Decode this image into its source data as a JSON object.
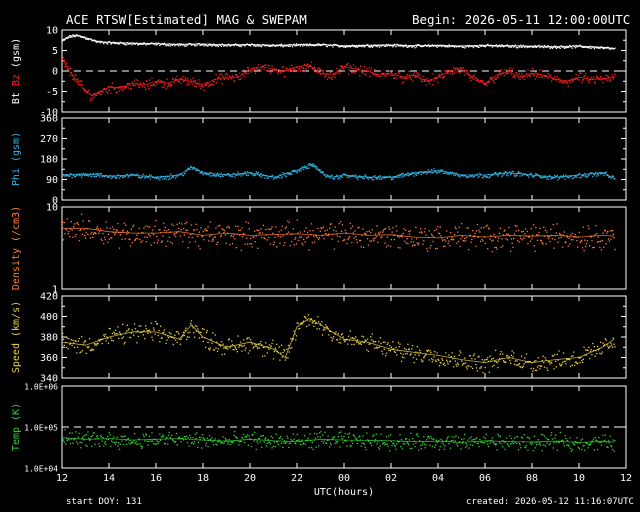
{
  "header": {
    "title": "ACE RTSW[Estimated] MAG & SWEPAM",
    "begin": "Begin: 2026-05-11 12:00:00UTC"
  },
  "footer": {
    "start_doy": "start DOY: 131",
    "created": "created: 2026-05-12 11:16:07UTC"
  },
  "colors": {
    "background": "#000000",
    "axes": "#ffffff",
    "bt": "#ffffff",
    "bz": "#ff2020",
    "phi": "#33b5e5",
    "density": "#ff7f3a",
    "speed": "#e8d048",
    "temp": "#33d033"
  },
  "chart_data": [
    {
      "type": "scatter",
      "panel": "mag",
      "ylabel_parts": [
        "Bt",
        "Bz",
        "(gsm)"
      ],
      "ylim": [
        -10,
        10
      ],
      "yticks": [
        -10,
        -5,
        0,
        5,
        10
      ],
      "ytick_labels": [
        "-10",
        "-5",
        "0",
        "5",
        "10"
      ],
      "xlim": [
        12,
        36
      ],
      "reference_line": 0,
      "series": [
        {
          "name": "Bt",
          "color_key": "bt",
          "x": [
            12.0,
            12.3,
            12.6,
            13.0,
            13.5,
            14,
            15,
            16,
            17,
            18,
            19,
            20,
            21,
            22,
            23,
            24,
            25,
            26,
            27,
            28,
            29,
            30,
            31,
            32,
            33,
            34,
            35,
            35.5
          ],
          "y": [
            7.5,
            8.5,
            8.8,
            8.2,
            7.2,
            7,
            6.8,
            6.7,
            6.5,
            6.6,
            6.4,
            6.5,
            6.3,
            6.4,
            6.5,
            6.2,
            6.3,
            6.4,
            6.2,
            6.3,
            6.1,
            6.3,
            6.2,
            6.1,
            6.0,
            6.1,
            5.8,
            5.5
          ]
        },
        {
          "name": "Bz",
          "color_key": "bz",
          "x": [
            12.0,
            12.3,
            12.6,
            13.0,
            13.3,
            13.6,
            14,
            14.5,
            15,
            15.5,
            16,
            16.5,
            17,
            17.5,
            18,
            18.5,
            19,
            19.5,
            20,
            20.5,
            21,
            21.5,
            22,
            22.5,
            23,
            23.5,
            24,
            24.5,
            25,
            25.5,
            26,
            26.5,
            27,
            27.5,
            28,
            28.5,
            29,
            29.5,
            30,
            30.5,
            31,
            31.5,
            32,
            32.5,
            33,
            33.5,
            34,
            34.5,
            35,
            35.5
          ],
          "y": [
            3,
            0,
            -2,
            -5,
            -6,
            -5,
            -4,
            -4,
            -3,
            -3.5,
            -2.5,
            -3,
            -2,
            -2.5,
            -3.5,
            -2,
            -1.5,
            -1.5,
            0.5,
            1,
            0.5,
            0,
            1,
            1.5,
            -0.5,
            -1,
            1,
            0.5,
            0,
            -1,
            -0.5,
            -1.5,
            -1,
            -2.5,
            -1.5,
            0,
            0.5,
            -2,
            -3,
            -1,
            0,
            -1.5,
            -0.5,
            -1,
            -2,
            -2.5,
            -1.5,
            -2,
            -2,
            -1.5
          ]
        }
      ]
    },
    {
      "type": "scatter",
      "panel": "phi",
      "ylabel_parts": [
        "Phi (gsm)"
      ],
      "ylim": [
        0,
        360
      ],
      "yticks": [
        0,
        90,
        180,
        270,
        360
      ],
      "ytick_labels": [
        "0",
        "90",
        "180",
        "270",
        "360"
      ],
      "xlim": [
        12,
        36
      ],
      "series": [
        {
          "name": "Phi",
          "color_key": "phi",
          "x": [
            12,
            13,
            14,
            15,
            16,
            17,
            17.5,
            18,
            19,
            20,
            21,
            22,
            22.7,
            23,
            23.5,
            24,
            25,
            26,
            27,
            28,
            29,
            30,
            31,
            32,
            33,
            34,
            35,
            35.5
          ],
          "y": [
            110,
            115,
            105,
            110,
            100,
            110,
            145,
            120,
            110,
            120,
            100,
            130,
            160,
            120,
            100,
            110,
            100,
            100,
            120,
            130,
            110,
            110,
            120,
            110,
            100,
            110,
            120,
            95
          ]
        }
      ]
    },
    {
      "type": "scatter",
      "panel": "density",
      "ylabel_parts": [
        "Density (/cm3)"
      ],
      "yscale": "log",
      "ylim": [
        1,
        10
      ],
      "yticks": [
        1,
        10
      ],
      "ytick_labels": [
        "1",
        "10"
      ],
      "xlim": [
        12,
        36
      ],
      "series": [
        {
          "name": "Density",
          "color_key": "density",
          "x": [
            12,
            13,
            14,
            15,
            16,
            17,
            18,
            19,
            20,
            21,
            22,
            23,
            24,
            25,
            26,
            27,
            28,
            29,
            30,
            31,
            32,
            33,
            34,
            35,
            35.5
          ],
          "y": [
            5.5,
            5.5,
            5,
            4.8,
            4.8,
            5,
            4.5,
            4.8,
            4.5,
            4.6,
            4.7,
            4.5,
            4.8,
            4.5,
            4.6,
            4.3,
            4.2,
            4.5,
            4.3,
            4.5,
            4.4,
            4.5,
            4.3,
            4.5,
            4.4
          ]
        }
      ]
    },
    {
      "type": "scatter",
      "panel": "speed",
      "ylabel_parts": [
        "Speed (km/s)"
      ],
      "ylim": [
        340,
        420
      ],
      "yticks": [
        340,
        360,
        380,
        400,
        420
      ],
      "ytick_labels": [
        "340",
        "360",
        "380",
        "400",
        "420"
      ],
      "xlim": [
        12,
        36
      ],
      "series": [
        {
          "name": "Speed",
          "color_key": "speed",
          "x": [
            12,
            13,
            14,
            15,
            16,
            17,
            17.5,
            18,
            19,
            20,
            21,
            21.5,
            22,
            22.5,
            23,
            24,
            25,
            26,
            27,
            28,
            29,
            30,
            31,
            32,
            33,
            34,
            35,
            35.5
          ],
          "y": [
            375,
            372,
            380,
            385,
            385,
            378,
            392,
            380,
            370,
            375,
            368,
            360,
            390,
            398,
            392,
            378,
            375,
            368,
            365,
            362,
            358,
            355,
            360,
            355,
            358,
            360,
            370,
            378
          ]
        }
      ]
    },
    {
      "type": "scatter",
      "panel": "temp",
      "ylabel_parts": [
        "Temp (K)"
      ],
      "yscale": "log",
      "ylim": [
        10000,
        1000000
      ],
      "yticks": [
        10000,
        100000,
        1000000
      ],
      "ytick_labels": [
        "1.0E+04",
        "1.0E+05",
        "1.0E+06"
      ],
      "xlim": [
        12,
        36
      ],
      "reference_line": 100000,
      "series": [
        {
          "name": "Temp",
          "color_key": "temp",
          "x": [
            12,
            13,
            14,
            15,
            16,
            17,
            18,
            19,
            20,
            21,
            22,
            23,
            24,
            25,
            26,
            27,
            28,
            29,
            30,
            31,
            32,
            33,
            34,
            35,
            35.5
          ],
          "y": [
            55000,
            50000,
            52000,
            48000,
            50000,
            52000,
            48000,
            45000,
            50000,
            46000,
            44000,
            50000,
            48000,
            47000,
            46000,
            44000,
            45000,
            42000,
            46000,
            44000,
            43000,
            45000,
            42000,
            44000,
            43000
          ]
        }
      ]
    }
  ],
  "x_axis": {
    "xlabel": "UTC(hours)",
    "xlim": [
      12,
      36
    ],
    "ticks": [
      12,
      14,
      16,
      18,
      20,
      22,
      24,
      26,
      28,
      30,
      32,
      34,
      36
    ],
    "tick_labels": [
      "12",
      "14",
      "16",
      "18",
      "20",
      "22",
      "00",
      "02",
      "04",
      "06",
      "08",
      "10",
      "12"
    ]
  }
}
